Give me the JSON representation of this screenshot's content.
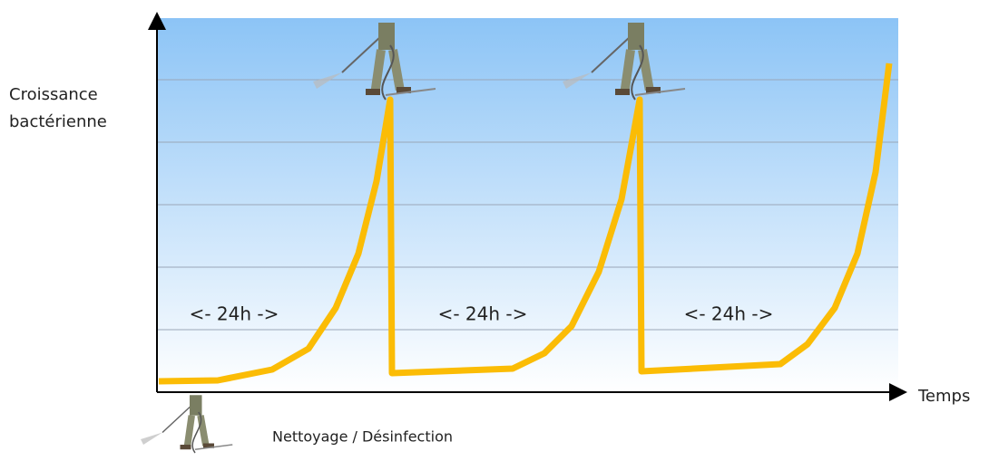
{
  "y_axis_label": [
    "Croissance",
    "bactérienne"
  ],
  "x_axis_label": "Temps",
  "intervals": [
    "<- 24h ->",
    "<- 24h ->",
    "<- 24h ->"
  ],
  "legend": {
    "label": "Nettoyage / Désinfection"
  }
}
